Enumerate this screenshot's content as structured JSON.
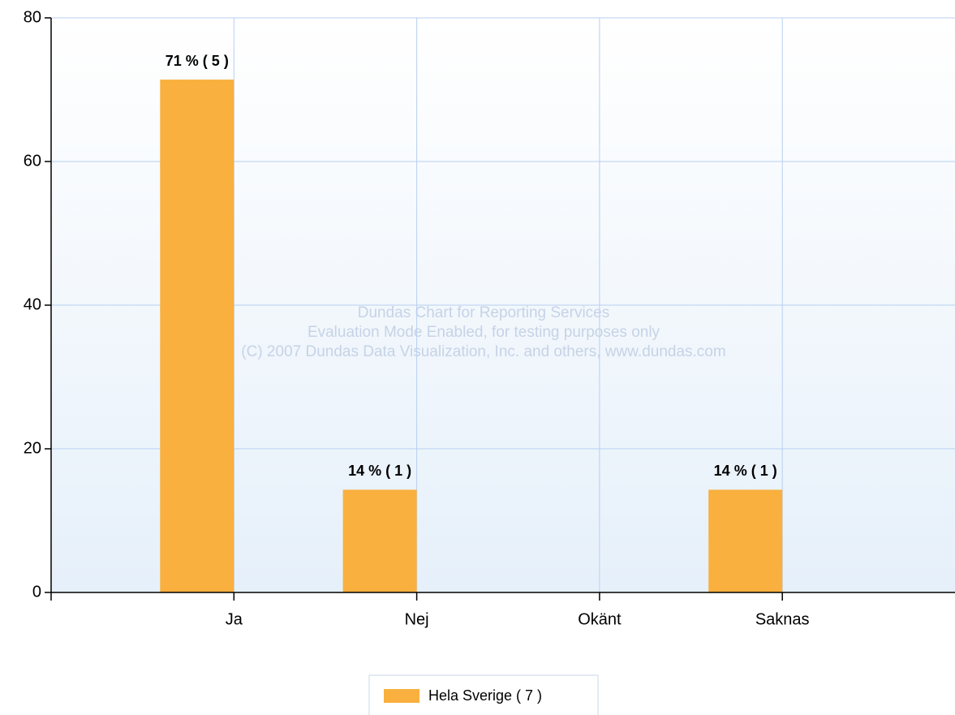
{
  "chart_data": {
    "type": "bar",
    "categories": [
      "Ja",
      "Nej",
      "Okänt",
      "Saknas"
    ],
    "series": [
      {
        "name": "Hela Sverige  ( 7 )",
        "color": "#f9b03e",
        "values": [
          71.4,
          14.3,
          null,
          14.3
        ],
        "value_labels": [
          "71 % ( 5 )",
          "14 % ( 1 )",
          null,
          "14 % ( 1 )"
        ]
      }
    ],
    "ylim": [
      0,
      80
    ],
    "yticks": [
      0,
      20,
      40,
      60,
      80
    ],
    "grid": true,
    "watermark": [
      "Dundas Chart for Reporting Services",
      "Evaluation Mode Enabled, for testing purposes only",
      "(C) 2007 Dundas Data Visualization, Inc. and others, www.dundas.com"
    ]
  }
}
